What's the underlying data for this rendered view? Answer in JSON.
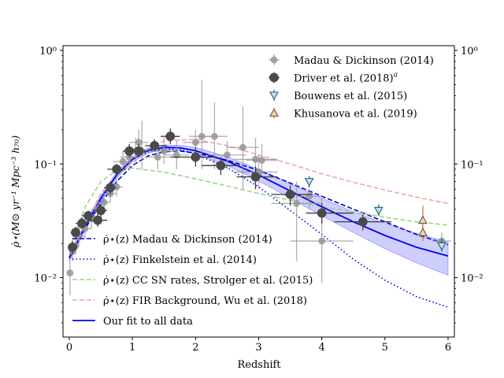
{
  "chart_data": {
    "type": "scatter",
    "title": "",
    "xlabel": "Redshift",
    "ylabel": "ρ̇⋆(M⊙ yr⁻¹ Mpc⁻³ h₇₀)",
    "xlim": [
      -0.1,
      6.1
    ],
    "ylim": [
      0.003,
      1.1
    ],
    "yscale": "log",
    "grid": false,
    "xticks": [
      0,
      1,
      2,
      3,
      4,
      5,
      6
    ],
    "xtick_labels": [
      "0",
      "1",
      "2",
      "3",
      "4",
      "5",
      "6"
    ],
    "yticks": [
      0.01,
      0.1,
      1
    ],
    "ytick_labels": [
      "10⁻²",
      "10⁻¹",
      "10⁰"
    ],
    "legend_top": {
      "placement": "top-right",
      "entries": [
        {
          "label": "Madau & Dickinson (2014)",
          "color": "#9e9e9e",
          "marker": "circle"
        },
        {
          "label": "Driver et al. (2018)",
          "sup": "a",
          "color": "#4a4a4a",
          "marker": "circle"
        },
        {
          "label": "Bouwens et al. (2015)",
          "color": "#1f5f7a",
          "marker": "triangle-down"
        },
        {
          "label": "Khusanova et al. (2019)",
          "color": "#e07b1a",
          "marker": "triangle-up"
        }
      ]
    },
    "legend_bottom": {
      "placement": "lower-left",
      "entries": [
        {
          "label": "ρ̇⋆(z) Madau & Dickinson (2014)",
          "color": "#0000cc",
          "style": "dashed"
        },
        {
          "label": "ρ̇⋆(z)  Finkelstein et al. (2014)",
          "color": "#0000ee",
          "style": "dotted"
        },
        {
          "label": "ρ̇⋆(z) CC SN rates, Strolger et al. (2015)",
          "color": "#9ad48a",
          "style": "dashed"
        },
        {
          "label": "ρ̇⋆(z) FIR Background, Wu et al. (2018)",
          "color": "#f4a5a5",
          "style": "dashed"
        },
        {
          "label": "Our fit to all data",
          "color": "#0000ee",
          "style": "solid"
        }
      ]
    },
    "series": [
      {
        "name": "Madau & Dickinson (2014)",
        "kind": "points",
        "color": "#9e9e9e",
        "points": [
          {
            "x": 0.01,
            "y": 0.011,
            "ylo": 0.007,
            "yhi": 0.014,
            "xlo": 0.0,
            "xhi": 0.02
          },
          {
            "x": 0.05,
            "y": 0.017,
            "ylo": 0.014,
            "yhi": 0.02,
            "xlo": 0.0,
            "xhi": 0.1
          },
          {
            "x": 0.1,
            "y": 0.019,
            "ylo": 0.016,
            "yhi": 0.022,
            "xlo": 0.05,
            "xhi": 0.15
          },
          {
            "x": 0.15,
            "y": 0.023,
            "ylo": 0.019,
            "yhi": 0.028,
            "xlo": 0.05,
            "xhi": 0.25
          },
          {
            "x": 0.25,
            "y": 0.027,
            "ylo": 0.022,
            "yhi": 0.032,
            "xlo": 0.15,
            "xhi": 0.35
          },
          {
            "x": 0.35,
            "y": 0.033,
            "ylo": 0.027,
            "yhi": 0.039,
            "xlo": 0.25,
            "xhi": 0.45
          },
          {
            "x": 0.45,
            "y": 0.04,
            "ylo": 0.033,
            "yhi": 0.048,
            "xlo": 0.35,
            "xhi": 0.55
          },
          {
            "x": 0.55,
            "y": 0.046,
            "ylo": 0.038,
            "yhi": 0.055,
            "xlo": 0.45,
            "xhi": 0.65
          },
          {
            "x": 0.65,
            "y": 0.055,
            "ylo": 0.046,
            "yhi": 0.066,
            "xlo": 0.55,
            "xhi": 0.75
          },
          {
            "x": 0.75,
            "y": 0.063,
            "ylo": 0.052,
            "yhi": 0.076,
            "xlo": 0.65,
            "xhi": 0.85
          },
          {
            "x": 0.85,
            "y": 0.105,
            "ylo": 0.085,
            "yhi": 0.13,
            "xlo": 0.7,
            "xhi": 1.0
          },
          {
            "x": 0.95,
            "y": 0.115,
            "ylo": 0.09,
            "yhi": 0.14,
            "xlo": 0.8,
            "xhi": 1.1
          },
          {
            "x": 1.05,
            "y": 0.13,
            "ylo": 0.1,
            "yhi": 0.17,
            "xlo": 0.9,
            "xhi": 1.2
          },
          {
            "x": 1.1,
            "y": 0.155,
            "ylo": 0.12,
            "yhi": 0.2,
            "xlo": 0.95,
            "xhi": 1.25
          },
          {
            "x": 1.15,
            "y": 0.13,
            "ylo": 0.09,
            "yhi": 0.24,
            "xlo": 1.0,
            "xhi": 1.3
          },
          {
            "x": 1.4,
            "y": 0.115,
            "ylo": 0.09,
            "yhi": 0.15,
            "xlo": 1.2,
            "xhi": 1.6
          },
          {
            "x": 1.5,
            "y": 0.13,
            "ylo": 0.1,
            "yhi": 0.17,
            "xlo": 1.3,
            "xhi": 1.7
          },
          {
            "x": 1.7,
            "y": 0.12,
            "ylo": 0.09,
            "yhi": 0.16,
            "xlo": 1.5,
            "xhi": 1.9
          },
          {
            "x": 2.0,
            "y": 0.155,
            "ylo": 0.12,
            "yhi": 0.2,
            "xlo": 1.8,
            "xhi": 2.2
          },
          {
            "x": 2.1,
            "y": 0.175,
            "ylo": 0.09,
            "yhi": 0.55,
            "xlo": 1.9,
            "xhi": 2.3
          },
          {
            "x": 2.3,
            "y": 0.175,
            "ylo": 0.09,
            "yhi": 0.35,
            "xlo": 2.1,
            "xhi": 2.5
          },
          {
            "x": 2.5,
            "y": 0.12,
            "ylo": 0.09,
            "yhi": 0.16,
            "xlo": 2.2,
            "xhi": 2.8
          },
          {
            "x": 2.75,
            "y": 0.14,
            "ylo": 0.06,
            "yhi": 0.32,
            "xlo": 2.5,
            "xhi": 3.0
          },
          {
            "x": 2.95,
            "y": 0.11,
            "ylo": 0.07,
            "yhi": 0.17,
            "xlo": 2.6,
            "xhi": 3.3
          },
          {
            "x": 3.0,
            "y": 0.085,
            "ylo": 0.06,
            "yhi": 0.12,
            "xlo": 2.6,
            "xhi": 3.3
          },
          {
            "x": 3.05,
            "y": 0.108,
            "ylo": 0.08,
            "yhi": 0.15,
            "xlo": 2.8,
            "xhi": 3.3
          },
          {
            "x": 3.6,
            "y": 0.045,
            "ylo": 0.014,
            "yhi": 0.07,
            "xlo": 3.2,
            "xhi": 4.0
          },
          {
            "x": 3.8,
            "y": 0.052,
            "ylo": 0.04,
            "yhi": 0.06,
            "xlo": 3.6,
            "xhi": 4.0
          },
          {
            "x": 4.0,
            "y": 0.021,
            "ylo": 0.009,
            "yhi": 0.05,
            "xlo": 3.5,
            "xhi": 4.5
          },
          {
            "x": 5.9,
            "y": 0.021,
            "ylo": 0.017,
            "yhi": 0.025,
            "xlo": 5.75,
            "xhi": 6.05
          }
        ]
      },
      {
        "name": "Driver et al. (2018)",
        "kind": "points",
        "color": "#4a4a4a",
        "points": [
          {
            "x": 0.05,
            "y": 0.0185,
            "ylo": 0.016,
            "yhi": 0.021,
            "xlo": 0.0,
            "xhi": 0.1
          },
          {
            "x": 0.1,
            "y": 0.025,
            "ylo": 0.022,
            "yhi": 0.028,
            "xlo": 0.02,
            "xhi": 0.17
          },
          {
            "x": 0.2,
            "y": 0.03,
            "ylo": 0.027,
            "yhi": 0.034,
            "xlo": 0.1,
            "xhi": 0.3
          },
          {
            "x": 0.3,
            "y": 0.035,
            "ylo": 0.031,
            "yhi": 0.039,
            "xlo": 0.2,
            "xhi": 0.4
          },
          {
            "x": 0.45,
            "y": 0.032,
            "ylo": 0.028,
            "yhi": 0.037,
            "xlo": 0.3,
            "xhi": 0.6
          },
          {
            "x": 0.5,
            "y": 0.039,
            "ylo": 0.034,
            "yhi": 0.045,
            "xlo": 0.4,
            "xhi": 0.6
          },
          {
            "x": 0.65,
            "y": 0.062,
            "ylo": 0.054,
            "yhi": 0.07,
            "xlo": 0.55,
            "xhi": 0.75
          },
          {
            "x": 0.75,
            "y": 0.09,
            "ylo": 0.08,
            "yhi": 0.1,
            "xlo": 0.6,
            "xhi": 0.9
          },
          {
            "x": 0.95,
            "y": 0.13,
            "ylo": 0.115,
            "yhi": 0.15,
            "xlo": 0.85,
            "xhi": 1.05
          },
          {
            "x": 1.1,
            "y": 0.13,
            "ylo": 0.115,
            "yhi": 0.15,
            "xlo": 0.95,
            "xhi": 1.25
          },
          {
            "x": 1.35,
            "y": 0.145,
            "ylo": 0.13,
            "yhi": 0.165,
            "xlo": 1.2,
            "xhi": 1.55
          },
          {
            "x": 1.6,
            "y": 0.175,
            "ylo": 0.15,
            "yhi": 0.205,
            "xlo": 1.45,
            "xhi": 1.75
          },
          {
            "x": 2.0,
            "y": 0.115,
            "ylo": 0.095,
            "yhi": 0.14,
            "xlo": 1.6,
            "xhi": 2.3
          },
          {
            "x": 2.4,
            "y": 0.097,
            "ylo": 0.08,
            "yhi": 0.115,
            "xlo": 2.1,
            "xhi": 2.7
          },
          {
            "x": 2.95,
            "y": 0.077,
            "ylo": 0.06,
            "yhi": 0.095,
            "xlo": 2.65,
            "xhi": 3.3
          },
          {
            "x": 3.5,
            "y": 0.054,
            "ylo": 0.043,
            "yhi": 0.065,
            "xlo": 3.2,
            "xhi": 3.85
          },
          {
            "x": 4.0,
            "y": 0.037,
            "ylo": 0.03,
            "yhi": 0.045,
            "xlo": 3.75,
            "xhi": 4.5
          },
          {
            "x": 4.65,
            "y": 0.031,
            "ylo": 0.026,
            "yhi": 0.036,
            "xlo": 4.2,
            "xhi": 5.1
          }
        ]
      },
      {
        "name": "Bouwens et al. (2015)",
        "kind": "points",
        "color": "#1f5f7a",
        "points": [
          {
            "x": 3.8,
            "y": 0.07,
            "ylo": 0.062,
            "yhi": 0.078
          },
          {
            "x": 4.9,
            "y": 0.039,
            "ylo": 0.035,
            "yhi": 0.044
          },
          {
            "x": 5.9,
            "y": 0.019,
            "ylo": 0.017,
            "yhi": 0.022
          }
        ]
      },
      {
        "name": "Khusanova et al. (2019)",
        "kind": "points",
        "color": "#e07b1a",
        "points": [
          {
            "x": 5.6,
            "y": 0.032,
            "ylo": 0.022,
            "yhi": 0.043
          },
          {
            "x": 5.6,
            "y": 0.025,
            "ylo": 0.021,
            "yhi": 0.029
          }
        ]
      },
      {
        "name": "ρ̇⋆(z) Madau & Dickinson (2014)",
        "kind": "curve",
        "color": "#0000cc",
        "style": "dashed",
        "x": [
          0,
          0.25,
          0.5,
          0.75,
          1.0,
          1.25,
          1.5,
          1.75,
          2.0,
          2.5,
          3.0,
          3.5,
          4.0,
          4.5,
          5.0,
          5.5,
          6.0
        ],
        "y": [
          0.015,
          0.027,
          0.045,
          0.07,
          0.097,
          0.118,
          0.128,
          0.13,
          0.125,
          0.108,
          0.088,
          0.068,
          0.052,
          0.04,
          0.031,
          0.024,
          0.0195
        ]
      },
      {
        "name": "ρ̇⋆(z)  Finkelstein et al. (2014)",
        "kind": "curve",
        "color": "#0000ee",
        "style": "dotted",
        "x": [
          0,
          0.25,
          0.5,
          0.75,
          1.0,
          1.25,
          1.5,
          1.75,
          2.0,
          2.5,
          3.0,
          3.5,
          4.0,
          4.5,
          5.0,
          5.5,
          6.0
        ],
        "y": [
          0.015,
          0.028,
          0.048,
          0.08,
          0.11,
          0.128,
          0.136,
          0.134,
          0.122,
          0.093,
          0.063,
          0.039,
          0.024,
          0.0145,
          0.0095,
          0.0068,
          0.0055
        ]
      },
      {
        "name": "ρ̇⋆(z) CC SN rates, Strolger et al. (2015)",
        "kind": "curve",
        "color": "#9ad48a",
        "style": "dashed",
        "x": [
          0,
          0.25,
          0.5,
          0.75,
          1.0,
          1.5,
          2.0,
          2.5,
          3.0,
          3.5,
          4.0,
          4.5,
          5.0,
          5.5,
          6.0
        ],
        "y": [
          0.018,
          0.042,
          0.07,
          0.088,
          0.092,
          0.085,
          0.074,
          0.064,
          0.055,
          0.048,
          0.042,
          0.038,
          0.034,
          0.031,
          0.029
        ]
      },
      {
        "name": "ρ̇⋆(z) FIR Background, Wu et al. (2018)",
        "kind": "curve",
        "color": "#f4a5a5",
        "style": "dashed",
        "x": [
          0,
          0.5,
          1.0,
          1.5,
          2.0,
          2.5,
          3.0,
          3.5,
          4.0,
          4.5,
          5.0,
          5.5,
          6.0
        ],
        "y": [
          0.016,
          0.055,
          0.115,
          0.16,
          0.165,
          0.145,
          0.12,
          0.1,
          0.082,
          0.069,
          0.059,
          0.051,
          0.045
        ]
      },
      {
        "name": "Our fit to all data",
        "kind": "curve",
        "color": "#0000ee",
        "style": "solid",
        "x": [
          0,
          0.25,
          0.5,
          0.75,
          1.0,
          1.25,
          1.5,
          1.75,
          2.0,
          2.5,
          3.0,
          3.5,
          4.0,
          4.5,
          5.0,
          5.5,
          6.0
        ],
        "y": [
          0.0148,
          0.028,
          0.05,
          0.08,
          0.11,
          0.132,
          0.14,
          0.139,
          0.131,
          0.106,
          0.08,
          0.058,
          0.042,
          0.031,
          0.0235,
          0.0185,
          0.0155
        ],
        "band_lower": [
          0.0138,
          0.026,
          0.047,
          0.075,
          0.104,
          0.125,
          0.133,
          0.132,
          0.122,
          0.097,
          0.071,
          0.05,
          0.035,
          0.025,
          0.018,
          0.0135,
          0.0105
        ],
        "band_upper": [
          0.0158,
          0.03,
          0.053,
          0.085,
          0.116,
          0.139,
          0.147,
          0.146,
          0.14,
          0.116,
          0.09,
          0.067,
          0.05,
          0.038,
          0.03,
          0.0245,
          0.0205
        ]
      }
    ]
  }
}
